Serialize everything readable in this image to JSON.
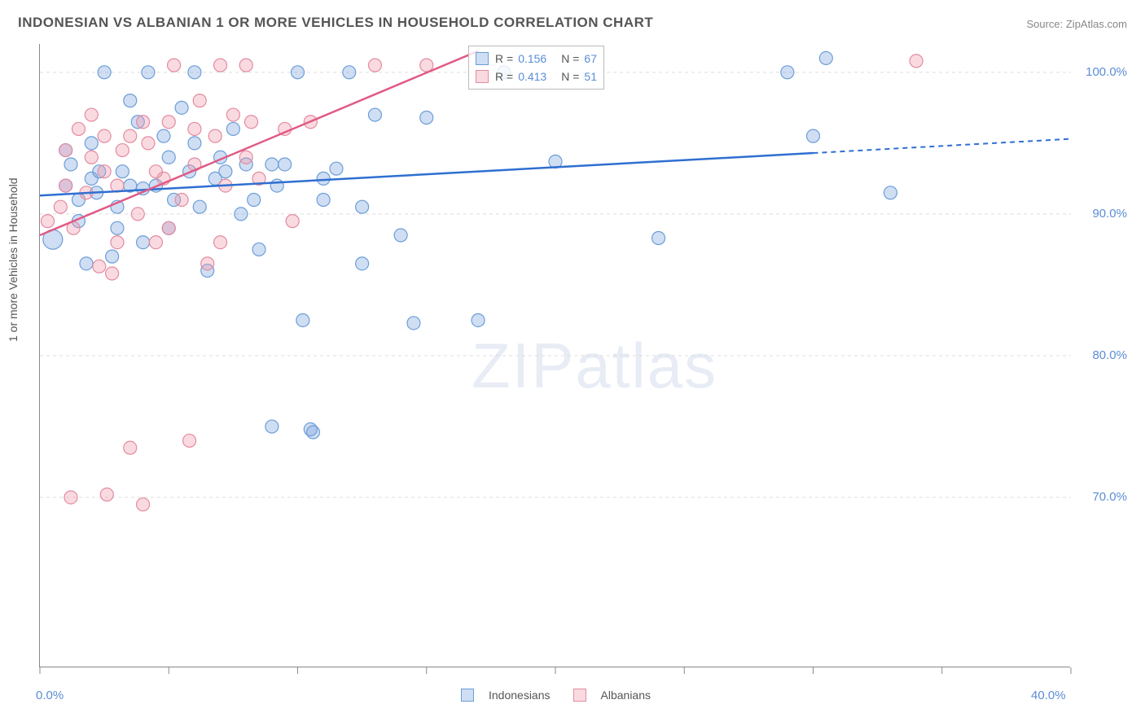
{
  "title": "INDONESIAN VS ALBANIAN 1 OR MORE VEHICLES IN HOUSEHOLD CORRELATION CHART",
  "source": "Source: ZipAtlas.com",
  "ylabel": "1 or more Vehicles in Household",
  "watermark_zip": "ZIP",
  "watermark_atlas": "atlas",
  "chart": {
    "type": "scatter",
    "xlim": [
      0,
      40
    ],
    "ylim": [
      58,
      102
    ],
    "yticks": [
      70,
      80,
      90,
      100
    ],
    "ytick_labels": [
      "70.0%",
      "80.0%",
      "90.0%",
      "100.0%"
    ],
    "xticks": [
      0,
      5,
      10,
      15,
      20,
      25,
      30,
      35,
      40
    ],
    "xtick_labels_visible": {
      "0": "0.0%",
      "40": "40.0%"
    },
    "grid_color": "#dddddd",
    "axis_color": "#888888",
    "background": "#ffffff",
    "series": [
      {
        "name": "Indonesians",
        "color_fill": "rgba(120,160,220,0.35)",
        "color_stroke": "#6a9ed8",
        "trend_color": "#2f6fd0",
        "r_value": "0.156",
        "n_value": "67",
        "trend_start": {
          "x": 0,
          "y": 91.3
        },
        "trend_end_solid": {
          "x": 30,
          "y": 94.3
        },
        "trend_end_dashed": {
          "x": 40,
          "y": 95.3
        },
        "points": [
          {
            "x": 0.5,
            "y": 88.2,
            "r": 12
          },
          {
            "x": 1,
            "y": 92
          },
          {
            "x": 1.2,
            "y": 93.5
          },
          {
            "x": 1.5,
            "y": 89.5
          },
          {
            "x": 1.8,
            "y": 86.5
          },
          {
            "x": 2,
            "y": 92.5
          },
          {
            "x": 2.2,
            "y": 91.5
          },
          {
            "x": 2.5,
            "y": 100
          },
          {
            "x": 2.8,
            "y": 87
          },
          {
            "x": 3,
            "y": 90.5
          },
          {
            "x": 3.2,
            "y": 93
          },
          {
            "x": 3.5,
            "y": 98
          },
          {
            "x": 3.8,
            "y": 96.5
          },
          {
            "x": 4,
            "y": 91.8
          },
          {
            "x": 4.2,
            "y": 100
          },
          {
            "x": 4.5,
            "y": 92
          },
          {
            "x": 4.8,
            "y": 95.5
          },
          {
            "x": 5,
            "y": 89
          },
          {
            "x": 5.2,
            "y": 91
          },
          {
            "x": 5.5,
            "y": 97.5
          },
          {
            "x": 5.8,
            "y": 93
          },
          {
            "x": 6,
            "y": 100
          },
          {
            "x": 6.2,
            "y": 90.5
          },
          {
            "x": 6.5,
            "y": 86
          },
          {
            "x": 6.8,
            "y": 92.5
          },
          {
            "x": 7,
            "y": 94
          },
          {
            "x": 7.5,
            "y": 96
          },
          {
            "x": 7.8,
            "y": 90
          },
          {
            "x": 8,
            "y": 93.5
          },
          {
            "x": 8.5,
            "y": 87.5
          },
          {
            "x": 9,
            "y": 75
          },
          {
            "x": 9.2,
            "y": 92
          },
          {
            "x": 9.5,
            "y": 93.5
          },
          {
            "x": 10,
            "y": 100
          },
          {
            "x": 10.2,
            "y": 82.5
          },
          {
            "x": 10.5,
            "y": 74.8
          },
          {
            "x": 10.6,
            "y": 74.6
          },
          {
            "x": 11,
            "y": 91
          },
          {
            "x": 11.5,
            "y": 93.2
          },
          {
            "x": 12,
            "y": 100
          },
          {
            "x": 12.5,
            "y": 90.5
          },
          {
            "x": 13,
            "y": 97
          },
          {
            "x": 14,
            "y": 88.5
          },
          {
            "x": 14.5,
            "y": 82.3
          },
          {
            "x": 15,
            "y": 96.8
          },
          {
            "x": 17,
            "y": 82.5
          },
          {
            "x": 18,
            "y": 100
          },
          {
            "x": 20,
            "y": 93.7
          },
          {
            "x": 24,
            "y": 88.3
          },
          {
            "x": 29,
            "y": 100
          },
          {
            "x": 30,
            "y": 95.5
          },
          {
            "x": 30.5,
            "y": 101
          },
          {
            "x": 33,
            "y": 91.5
          },
          {
            "x": 1,
            "y": 94.5
          },
          {
            "x": 2,
            "y": 95
          },
          {
            "x": 3.5,
            "y": 92
          },
          {
            "x": 4,
            "y": 88
          },
          {
            "x": 5,
            "y": 94
          },
          {
            "x": 2.3,
            "y": 93
          },
          {
            "x": 1.5,
            "y": 91
          },
          {
            "x": 6,
            "y": 95
          },
          {
            "x": 3,
            "y": 89
          },
          {
            "x": 7.2,
            "y": 93
          },
          {
            "x": 8.3,
            "y": 91
          },
          {
            "x": 9,
            "y": 93.5
          },
          {
            "x": 11,
            "y": 92.5
          },
          {
            "x": 12.5,
            "y": 86.5
          }
        ]
      },
      {
        "name": "Albanians",
        "color_fill": "rgba(240,150,170,0.35)",
        "color_stroke": "#e38ba0",
        "trend_color": "#e05a85",
        "r_value": "0.413",
        "n_value": "51",
        "trend_start": {
          "x": 0,
          "y": 88.5
        },
        "trend_end_solid": {
          "x": 17,
          "y": 101.5
        },
        "points": [
          {
            "x": 0.3,
            "y": 89.5
          },
          {
            "x": 0.8,
            "y": 90.5
          },
          {
            "x": 1,
            "y": 94.5
          },
          {
            "x": 1.3,
            "y": 89
          },
          {
            "x": 1.5,
            "y": 96
          },
          {
            "x": 1.8,
            "y": 91.5
          },
          {
            "x": 2,
            "y": 97
          },
          {
            "x": 2.3,
            "y": 86.3
          },
          {
            "x": 2.5,
            "y": 93
          },
          {
            "x": 2.8,
            "y": 85.8
          },
          {
            "x": 2.6,
            "y": 70.2
          },
          {
            "x": 3,
            "y": 92
          },
          {
            "x": 3.2,
            "y": 94.5
          },
          {
            "x": 3.5,
            "y": 73.5
          },
          {
            "x": 3.8,
            "y": 90
          },
          {
            "x": 4,
            "y": 69.5
          },
          {
            "x": 4.2,
            "y": 95
          },
          {
            "x": 4.5,
            "y": 88
          },
          {
            "x": 4.8,
            "y": 92.5
          },
          {
            "x": 5,
            "y": 96.5
          },
          {
            "x": 5.2,
            "y": 100.5
          },
          {
            "x": 5.5,
            "y": 91
          },
          {
            "x": 5.8,
            "y": 74
          },
          {
            "x": 6,
            "y": 93.5
          },
          {
            "x": 6.2,
            "y": 98
          },
          {
            "x": 6.5,
            "y": 86.5
          },
          {
            "x": 6.8,
            "y": 95.5
          },
          {
            "x": 7,
            "y": 100.5
          },
          {
            "x": 7.2,
            "y": 92
          },
          {
            "x": 7.5,
            "y": 97
          },
          {
            "x": 8,
            "y": 100.5
          },
          {
            "x": 8.2,
            "y": 96.5
          },
          {
            "x": 8.5,
            "y": 92.5
          },
          {
            "x": 9.5,
            "y": 96
          },
          {
            "x": 9.8,
            "y": 89.5
          },
          {
            "x": 10.5,
            "y": 96.5
          },
          {
            "x": 13,
            "y": 100.5
          },
          {
            "x": 15,
            "y": 100.5
          },
          {
            "x": 34,
            "y": 100.8
          },
          {
            "x": 1,
            "y": 92
          },
          {
            "x": 2,
            "y": 94
          },
          {
            "x": 3,
            "y": 88
          },
          {
            "x": 3.5,
            "y": 95.5
          },
          {
            "x": 4.5,
            "y": 93
          },
          {
            "x": 5,
            "y": 89
          },
          {
            "x": 6,
            "y": 96
          },
          {
            "x": 7,
            "y": 88
          },
          {
            "x": 8,
            "y": 94
          },
          {
            "x": 1.2,
            "y": 70
          },
          {
            "x": 2.5,
            "y": 95.5
          },
          {
            "x": 4,
            "y": 96.5
          }
        ]
      }
    ]
  },
  "legend_stats": {
    "r_label": "R =",
    "n_label": "N ="
  },
  "bottom_legend": {
    "items": [
      "Indonesians",
      "Albanians"
    ]
  }
}
